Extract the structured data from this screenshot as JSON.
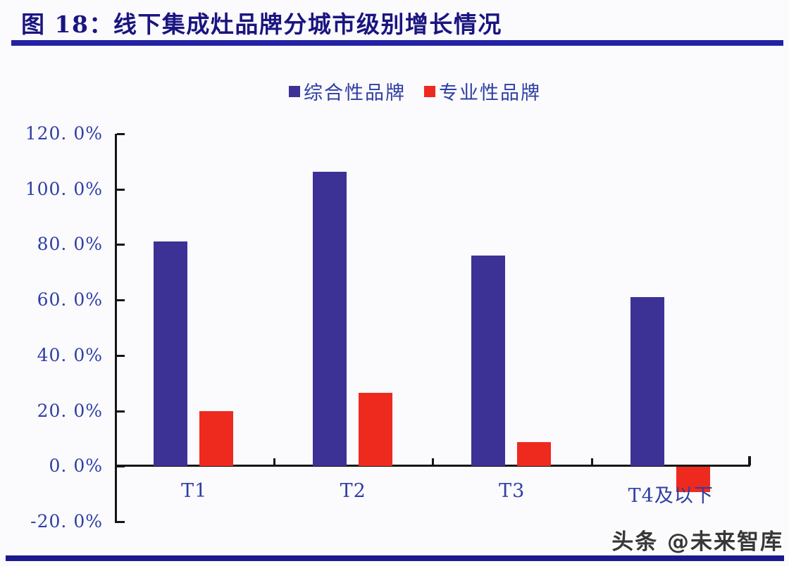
{
  "header": {
    "title": "图 18：线下集成灶品牌分城市级别增长情况",
    "rule_color": "#2222a4"
  },
  "watermark": {
    "text": "头条 @未来智库"
  },
  "footer": {
    "bar_color": "#1a1a8e"
  },
  "chart_data": {
    "type": "bar",
    "title": "图 18：线下集成灶品牌分城市级别增长情况",
    "categories": [
      "T1",
      "T2",
      "T3",
      "T4及以下"
    ],
    "series": [
      {
        "name": "综合性品牌",
        "color": "#3c3296",
        "values": [
          81.0,
          106.4,
          76.0,
          61.0
        ]
      },
      {
        "name": "专业性品牌",
        "color": "#ee2a1e",
        "values": [
          19.8,
          26.4,
          8.8,
          -9.0
        ]
      }
    ],
    "xlabel": "",
    "ylabel": "",
    "ylim": [
      -20,
      120
    ],
    "ytick_step": 20,
    "ytick_labels": [
      "120. 0%",
      "100. 0%",
      "80. 0%",
      "60. 0%",
      "40. 0%",
      "20. 0%",
      "0. 0%",
      "-20. 0%"
    ],
    "grid": false,
    "legend_position": "top-center",
    "axis_color": "#151515",
    "label_color": "#2e3fa3",
    "background": "#fbfafd"
  }
}
